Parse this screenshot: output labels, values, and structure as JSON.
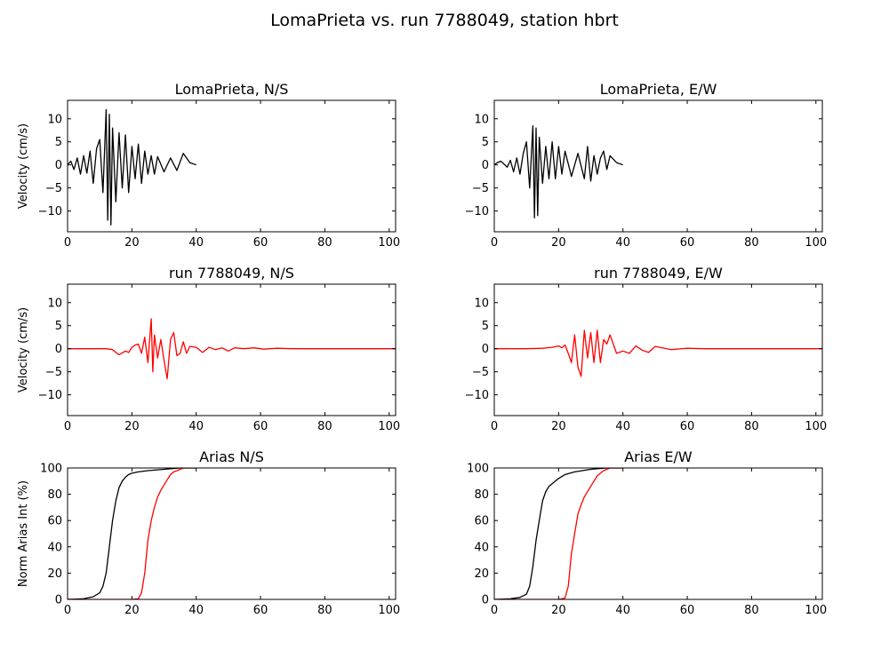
{
  "figure": {
    "suptitle": "LomaPrieta vs. run 7788049, station hbrt"
  },
  "colors": {
    "recorded": "#000000",
    "simulated": "#ff0000",
    "axes": "#000000",
    "background": "#ffffff"
  },
  "chart_data": [
    {
      "type": "line",
      "title": "LomaPrieta, N/S",
      "xlabel": "",
      "ylabel": "Velocity (cm/s)",
      "xlim": [
        0,
        102
      ],
      "ylim": [
        -14.5,
        14.0
      ],
      "xticks": [
        0,
        20,
        40,
        60,
        80,
        100
      ],
      "yticks": [
        -10,
        -5,
        0,
        5,
        10
      ],
      "grid": false,
      "series": [
        {
          "color": "#000000",
          "x": [
            0,
            1,
            2,
            3,
            4,
            5,
            6,
            7,
            8,
            9,
            10,
            11,
            12,
            12.5,
            13,
            13.5,
            14,
            15,
            16,
            17,
            18,
            19,
            20,
            21,
            22,
            23,
            24,
            25,
            26,
            27,
            28,
            30,
            32,
            34,
            36,
            38,
            40
          ],
          "y": [
            0,
            0.8,
            -1,
            1.5,
            -2,
            2,
            -1.8,
            3,
            -4,
            3.5,
            5.5,
            -6,
            12,
            -12,
            11,
            -13,
            8,
            -8,
            7,
            -5,
            6.5,
            -6,
            4,
            -3,
            4.5,
            -4,
            3,
            -2,
            2,
            -2,
            1.8,
            -1.5,
            1.5,
            -1.2,
            2.5,
            0.5,
            0
          ]
        }
      ]
    },
    {
      "type": "line",
      "title": "LomaPrieta, E/W",
      "xlabel": "",
      "ylabel": "",
      "xlim": [
        0,
        102
      ],
      "ylim": [
        -14.5,
        14.0
      ],
      "xticks": [
        0,
        20,
        40,
        60,
        80,
        100
      ],
      "yticks": [
        -10,
        -5,
        0,
        5,
        10
      ],
      "grid": false,
      "series": [
        {
          "color": "#000000",
          "x": [
            0,
            1,
            2,
            3,
            4,
            5,
            6,
            7,
            8,
            9,
            10,
            11,
            12,
            12.5,
            13,
            13.5,
            14,
            15,
            16,
            17,
            18,
            19,
            20,
            21,
            22,
            24,
            26,
            28,
            29,
            30,
            31,
            32,
            33,
            34,
            35,
            36,
            38,
            40
          ],
          "y": [
            0,
            0.5,
            0.8,
            0.2,
            -0.5,
            1,
            -1.5,
            1.5,
            -2,
            2.5,
            5,
            -5,
            8.5,
            -11.5,
            8,
            -11,
            6,
            -4,
            4,
            -3,
            5,
            -3,
            4,
            -2,
            3,
            -2.5,
            2.5,
            -3,
            4,
            -3.5,
            2,
            -2,
            1.5,
            3,
            -1,
            2,
            0.5,
            0
          ]
        }
      ]
    },
    {
      "type": "line",
      "title": "run 7788049, N/S",
      "xlabel": "",
      "ylabel": "Velocity (cm/s)",
      "xlim": [
        0,
        102
      ],
      "ylim": [
        -14.5,
        14.0
      ],
      "xticks": [
        0,
        20,
        40,
        60,
        80,
        100
      ],
      "yticks": [
        -10,
        -5,
        0,
        5,
        10
      ],
      "grid": false,
      "series": [
        {
          "color": "#ff0000",
          "x": [
            0,
            10,
            12,
            14,
            15,
            16,
            17,
            18,
            19,
            20,
            21,
            22,
            23,
            24,
            25,
            26,
            26.5,
            27,
            28,
            29,
            30,
            31,
            32,
            33,
            34,
            35,
            36,
            37,
            38,
            40,
            42,
            44,
            46,
            48,
            50,
            52,
            55,
            58,
            61,
            65,
            70,
            80,
            90,
            102
          ],
          "y": [
            0,
            0,
            0,
            -0.2,
            -0.8,
            -1.3,
            -0.9,
            -0.5,
            -0.8,
            0.3,
            0.8,
            1,
            -1,
            2.5,
            -3,
            6.5,
            -5,
            3,
            -2,
            2,
            -2.5,
            -6.5,
            2,
            3.5,
            -1.5,
            -1,
            1.5,
            -1,
            0.5,
            0.3,
            -0.8,
            0.3,
            -0.2,
            0.2,
            -0.5,
            0.2,
            0,
            0.2,
            -0.1,
            0.1,
            0,
            0,
            0,
            0
          ]
        }
      ]
    },
    {
      "type": "line",
      "title": "run 7788049, E/W",
      "xlabel": "",
      "ylabel": "",
      "xlim": [
        0,
        102
      ],
      "ylim": [
        -14.5,
        14.0
      ],
      "xticks": [
        0,
        20,
        40,
        60,
        80,
        100
      ],
      "yticks": [
        -10,
        -5,
        0,
        5,
        10
      ],
      "grid": false,
      "series": [
        {
          "color": "#ff0000",
          "x": [
            0,
            10,
            15,
            18,
            20,
            21,
            22,
            23,
            24,
            25,
            26,
            27,
            28,
            29,
            30,
            31,
            32,
            33,
            34,
            35,
            36,
            37,
            38,
            40,
            42,
            44,
            46,
            48,
            50,
            55,
            60,
            65,
            70,
            80,
            90,
            102
          ],
          "y": [
            0,
            0,
            0.1,
            0.3,
            0.6,
            0.2,
            0.8,
            -1,
            -3,
            3,
            -4,
            -6,
            4,
            -2,
            3.5,
            -3,
            4,
            -3,
            2,
            1,
            3,
            1,
            -1,
            -0.5,
            -1,
            0.6,
            -0.3,
            -0.8,
            0.5,
            -0.2,
            0.1,
            0,
            0,
            0,
            0,
            0
          ]
        }
      ]
    },
    {
      "type": "line",
      "title": "Arias N/S",
      "xlabel": "",
      "ylabel": "Norm Arias Int (%)",
      "xlim": [
        0,
        102
      ],
      "ylim": [
        0,
        100
      ],
      "xticks": [
        0,
        20,
        40,
        60,
        80,
        100
      ],
      "yticks": [
        0,
        20,
        40,
        60,
        80,
        100
      ],
      "grid": false,
      "series": [
        {
          "color": "#000000",
          "x": [
            0,
            5,
            8,
            10,
            11,
            12,
            13,
            14,
            15,
            16,
            17,
            18,
            19,
            20,
            22,
            25,
            30,
            35,
            40
          ],
          "y": [
            0,
            0.5,
            2,
            5,
            10,
            20,
            40,
            60,
            75,
            85,
            90,
            93,
            95,
            96,
            97,
            98,
            99,
            100,
            100
          ]
        },
        {
          "color": "#ff0000",
          "x": [
            0,
            10,
            20,
            22,
            23,
            24,
            25,
            26,
            27,
            28,
            29,
            30,
            31,
            32,
            33,
            34,
            35,
            36,
            40
          ],
          "y": [
            0,
            0,
            0,
            0.5,
            5,
            20,
            45,
            60,
            70,
            78,
            83,
            87,
            91,
            95,
            97,
            98,
            99,
            100,
            100
          ]
        }
      ]
    },
    {
      "type": "line",
      "title": "Arias E/W",
      "xlabel": "",
      "ylabel": "",
      "xlim": [
        0,
        102
      ],
      "ylim": [
        0,
        100
      ],
      "xticks": [
        0,
        20,
        40,
        60,
        80,
        100
      ],
      "yticks": [
        0,
        20,
        40,
        60,
        80,
        100
      ],
      "grid": false,
      "series": [
        {
          "color": "#000000",
          "x": [
            0,
            5,
            8,
            10,
            11,
            12,
            13,
            14,
            15,
            16,
            17,
            18,
            19,
            20,
            22,
            25,
            30,
            35,
            40
          ],
          "y": [
            0,
            0.5,
            1.5,
            4,
            10,
            25,
            45,
            60,
            75,
            82,
            86,
            88,
            90,
            92,
            95,
            97,
            99,
            100,
            100
          ]
        },
        {
          "color": "#ff0000",
          "x": [
            0,
            10,
            20,
            22,
            23,
            24,
            25,
            26,
            27,
            28,
            29,
            30,
            31,
            32,
            33,
            34,
            35,
            36,
            40
          ],
          "y": [
            0,
            0,
            0,
            1,
            10,
            35,
            50,
            65,
            72,
            78,
            82,
            86,
            90,
            94,
            96,
            98,
            99,
            100,
            100
          ]
        }
      ]
    }
  ]
}
